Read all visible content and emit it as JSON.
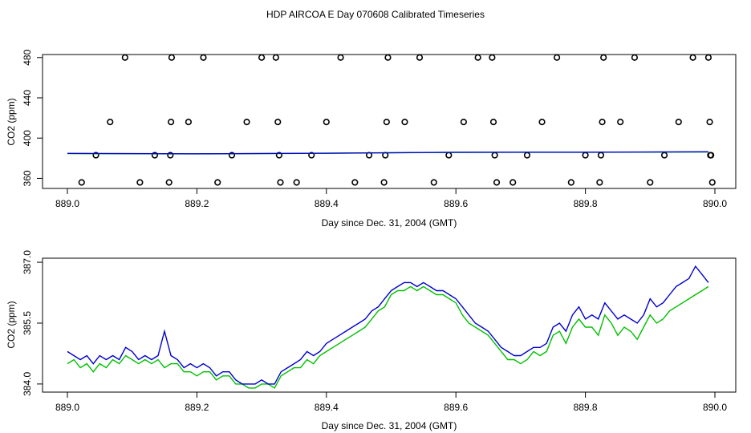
{
  "title": "HDP AIRCOA E  Day 070608  Calibrated Timeseries",
  "colors": {
    "green_series": "#00c000",
    "blue_series": "#0000cc",
    "points": "#000000"
  },
  "chart_data": [
    {
      "type": "scatter",
      "xlabel": "Day since Dec. 31, 2004 (GMT)",
      "ylabel": "CO2 (ppm)",
      "xlim": [
        889.0,
        890.0
      ],
      "ylim": [
        350,
        483
      ],
      "x_ticks": [
        "889.0",
        "889.2",
        "889.4",
        "889.6",
        "889.8",
        "890.0"
      ],
      "y_ticks": [
        "360",
        "400",
        "440",
        "480"
      ],
      "grid": false,
      "points": [
        [
          889.022,
          356
        ],
        [
          889.044,
          383
        ],
        [
          889.066,
          416
        ],
        [
          889.089,
          480
        ],
        [
          889.112,
          356
        ],
        [
          889.135,
          383
        ],
        [
          889.157,
          356
        ],
        [
          889.159,
          383
        ],
        [
          889.16,
          416
        ],
        [
          889.161,
          480
        ],
        [
          889.187,
          416
        ],
        [
          889.21,
          480
        ],
        [
          889.232,
          356
        ],
        [
          889.254,
          383
        ],
        [
          889.277,
          416
        ],
        [
          889.3,
          480
        ],
        [
          889.322,
          480
        ],
        [
          889.325,
          416
        ],
        [
          889.327,
          383
        ],
        [
          889.329,
          356
        ],
        [
          889.354,
          356
        ],
        [
          889.377,
          383
        ],
        [
          889.4,
          416
        ],
        [
          889.422,
          480
        ],
        [
          889.444,
          356
        ],
        [
          889.466,
          383
        ],
        [
          889.489,
          356
        ],
        [
          889.491,
          383
        ],
        [
          889.493,
          416
        ],
        [
          889.495,
          480
        ],
        [
          889.521,
          416
        ],
        [
          889.544,
          480
        ],
        [
          889.566,
          356
        ],
        [
          889.589,
          383
        ],
        [
          889.612,
          416
        ],
        [
          889.634,
          480
        ],
        [
          889.656,
          480
        ],
        [
          889.658,
          416
        ],
        [
          889.66,
          383
        ],
        [
          889.663,
          356
        ],
        [
          889.688,
          356
        ],
        [
          889.71,
          383
        ],
        [
          889.733,
          416
        ],
        [
          889.756,
          480
        ],
        [
          889.778,
          356
        ],
        [
          889.8,
          383
        ],
        [
          889.822,
          356
        ],
        [
          889.824,
          383
        ],
        [
          889.826,
          416
        ],
        [
          889.828,
          480
        ],
        [
          889.854,
          416
        ],
        [
          889.876,
          480
        ],
        [
          889.9,
          356
        ],
        [
          889.922,
          383
        ],
        [
          889.944,
          416
        ],
        [
          889.966,
          480
        ],
        [
          889.99,
          480
        ],
        [
          889.992,
          416
        ],
        [
          889.994,
          383
        ],
        [
          889.996,
          356
        ],
        [
          889.993,
          383
        ]
      ],
      "series": [
        {
          "color": "green",
          "x": [
            889.0,
            889.2,
            889.4,
            889.6,
            889.8,
            889.99
          ],
          "y": [
            384.6,
            384.3,
            384.9,
            385.8,
            385.9,
            386.2
          ]
        },
        {
          "color": "blue",
          "x": [
            889.0,
            889.2,
            889.4,
            889.6,
            889.8,
            889.99
          ],
          "y": [
            384.8,
            384.4,
            385.0,
            385.9,
            386.0,
            386.4
          ]
        }
      ]
    },
    {
      "type": "line",
      "xlabel": "Day since Dec. 31, 2004 (GMT)",
      "ylabel": "CO2 (ppm)",
      "xlim": [
        889.0,
        890.0
      ],
      "ylim": [
        383.8,
        387.1
      ],
      "x_ticks": [
        "889.0",
        "889.2",
        "889.4",
        "889.6",
        "889.8",
        "890.0"
      ],
      "y_ticks": [
        "384.0",
        "385.5",
        "387.0"
      ],
      "grid": false,
      "series": [
        {
          "color": "green",
          "x": [
            889.0,
            889.01,
            889.02,
            889.03,
            889.04,
            889.05,
            889.06,
            889.07,
            889.08,
            889.09,
            889.1,
            889.11,
            889.12,
            889.13,
            889.14,
            889.15,
            889.16,
            889.17,
            889.18,
            889.19,
            889.2,
            889.21,
            889.22,
            889.23,
            889.24,
            889.25,
            889.26,
            889.27,
            889.28,
            889.29,
            889.3,
            889.31,
            889.32,
            889.33,
            889.34,
            889.35,
            889.36,
            889.37,
            889.38,
            889.39,
            889.4,
            889.41,
            889.42,
            889.43,
            889.44,
            889.45,
            889.46,
            889.47,
            889.48,
            889.49,
            889.5,
            889.51,
            889.52,
            889.53,
            889.54,
            889.55,
            889.56,
            889.57,
            889.58,
            889.59,
            889.6,
            889.61,
            889.62,
            889.63,
            889.64,
            889.65,
            889.66,
            889.67,
            889.68,
            889.69,
            889.7,
            889.71,
            889.72,
            889.73,
            889.74,
            889.75,
            889.76,
            889.77,
            889.78,
            889.79,
            889.8,
            889.81,
            889.82,
            889.83,
            889.84,
            889.85,
            889.86,
            889.87,
            889.88,
            889.89,
            889.9,
            889.91,
            889.92,
            889.93,
            889.94,
            889.95,
            889.96,
            889.97,
            889.98,
            889.99
          ],
          "y": [
            384.5,
            384.6,
            384.4,
            384.5,
            384.3,
            384.5,
            384.4,
            384.6,
            384.5,
            384.7,
            384.6,
            384.5,
            384.6,
            384.5,
            384.6,
            384.4,
            384.5,
            384.5,
            384.3,
            384.3,
            384.2,
            384.3,
            384.3,
            384.1,
            384.2,
            384.2,
            384.0,
            384.0,
            383.9,
            383.9,
            384.0,
            384.0,
            383.9,
            384.2,
            384.3,
            384.4,
            384.4,
            384.6,
            384.5,
            384.7,
            384.8,
            384.9,
            385.0,
            385.1,
            385.2,
            385.3,
            385.4,
            385.6,
            385.8,
            385.9,
            386.2,
            386.3,
            386.3,
            386.4,
            386.3,
            386.4,
            386.3,
            386.2,
            386.2,
            386.1,
            386.0,
            385.7,
            385.5,
            385.4,
            385.3,
            385.2,
            385.0,
            384.8,
            384.6,
            384.6,
            384.5,
            384.6,
            384.8,
            384.7,
            384.8,
            385.2,
            385.3,
            385.0,
            385.4,
            385.6,
            385.4,
            385.4,
            385.2,
            385.7,
            385.5,
            385.2,
            385.4,
            385.3,
            385.1,
            385.4,
            385.7,
            385.5,
            385.6,
            385.8,
            385.9,
            386.0,
            386.1,
            386.2,
            386.3,
            386.4
          ]
        },
        {
          "color": "blue",
          "x": [
            889.0,
            889.01,
            889.02,
            889.03,
            889.04,
            889.05,
            889.06,
            889.07,
            889.08,
            889.09,
            889.1,
            889.11,
            889.12,
            889.13,
            889.14,
            889.15,
            889.16,
            889.17,
            889.18,
            889.19,
            889.2,
            889.21,
            889.22,
            889.23,
            889.24,
            889.25,
            889.26,
            889.27,
            889.28,
            889.29,
            889.3,
            889.31,
            889.32,
            889.33,
            889.34,
            889.35,
            889.36,
            889.37,
            889.38,
            889.39,
            889.4,
            889.41,
            889.42,
            889.43,
            889.44,
            889.45,
            889.46,
            889.47,
            889.48,
            889.49,
            889.5,
            889.51,
            889.52,
            889.53,
            889.54,
            889.55,
            889.56,
            889.57,
            889.58,
            889.59,
            889.6,
            889.61,
            889.62,
            889.63,
            889.64,
            889.65,
            889.66,
            889.67,
            889.68,
            889.69,
            889.7,
            889.71,
            889.72,
            889.73,
            889.74,
            889.75,
            889.76,
            889.77,
            889.78,
            889.79,
            889.8,
            889.81,
            889.82,
            889.83,
            889.84,
            889.85,
            889.86,
            889.87,
            889.88,
            889.89,
            889.9,
            889.91,
            889.92,
            889.93,
            889.94,
            889.95,
            889.96,
            889.97,
            889.98,
            889.99
          ],
          "y": [
            384.8,
            384.7,
            384.6,
            384.7,
            384.5,
            384.7,
            384.6,
            384.7,
            384.6,
            384.9,
            384.8,
            384.6,
            384.7,
            384.6,
            384.7,
            385.3,
            384.7,
            384.6,
            384.4,
            384.5,
            384.4,
            384.5,
            384.4,
            384.2,
            384.3,
            384.3,
            384.1,
            384.0,
            384.0,
            384.0,
            384.1,
            384.0,
            384.0,
            384.3,
            384.4,
            384.5,
            384.6,
            384.8,
            384.7,
            384.8,
            385.0,
            385.1,
            385.2,
            385.3,
            385.4,
            385.5,
            385.6,
            385.8,
            385.9,
            386.1,
            386.3,
            386.4,
            386.5,
            386.5,
            386.4,
            386.5,
            386.4,
            386.3,
            386.3,
            386.2,
            386.1,
            385.9,
            385.7,
            385.5,
            385.4,
            385.3,
            385.1,
            384.9,
            384.8,
            384.7,
            384.7,
            384.8,
            384.9,
            384.9,
            385.0,
            385.4,
            385.5,
            385.3,
            385.7,
            385.9,
            385.6,
            385.7,
            385.6,
            386.0,
            385.8,
            385.6,
            385.7,
            385.6,
            385.5,
            385.7,
            386.1,
            385.9,
            386.0,
            386.2,
            386.4,
            386.5,
            386.6,
            386.9,
            386.7,
            386.5
          ]
        }
      ]
    }
  ]
}
